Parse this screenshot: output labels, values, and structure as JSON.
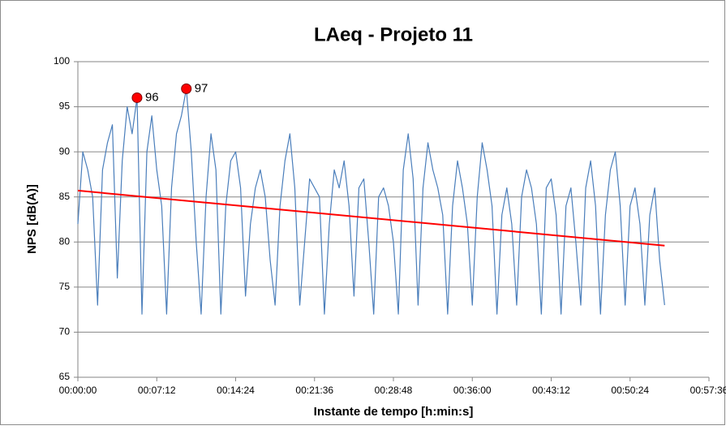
{
  "chart_data": {
    "type": "line",
    "title": "LAeq - Projeto 11",
    "x_label": "Instante de tempo [h:min:s]",
    "y_label": "NPS [dB(A)]",
    "xlim": [
      0,
      3456
    ],
    "xticks": [
      {
        "value": 0,
        "label": "00:00:00"
      },
      {
        "value": 432,
        "label": "00:07:12"
      },
      {
        "value": 864,
        "label": "00:14:24"
      },
      {
        "value": 1296,
        "label": "00:21:36"
      },
      {
        "value": 1728,
        "label": "00:28:48"
      },
      {
        "value": 2160,
        "label": "00:36:00"
      },
      {
        "value": 2592,
        "label": "00:43:12"
      },
      {
        "value": 3024,
        "label": "00:50:24"
      },
      {
        "value": 3456,
        "label": "00:57:36"
      }
    ],
    "ylim": [
      65,
      100
    ],
    "yticks": [
      65,
      70,
      75,
      80,
      85,
      90,
      95,
      100
    ],
    "grid": true,
    "x": [
      0,
      27,
      54,
      81,
      108,
      135,
      162,
      189,
      216,
      243,
      270,
      297,
      324,
      351,
      378,
      405,
      432,
      459,
      486,
      513,
      540,
      567,
      594,
      621,
      648,
      675,
      702,
      729,
      756,
      783,
      810,
      837,
      864,
      891,
      918,
      945,
      972,
      999,
      1026,
      1053,
      1080,
      1107,
      1134,
      1161,
      1188,
      1215,
      1242,
      1269,
      1296,
      1323,
      1350,
      1377,
      1404,
      1431,
      1458,
      1485,
      1512,
      1539,
      1566,
      1593,
      1620,
      1647,
      1674,
      1701,
      1728,
      1755,
      1782,
      1809,
      1836,
      1863,
      1890,
      1917,
      1944,
      1971,
      1998,
      2025,
      2052,
      2079,
      2106,
      2133,
      2160,
      2187,
      2214,
      2241,
      2268,
      2295,
      2322,
      2349,
      2376,
      2403,
      2430,
      2457,
      2484,
      2511,
      2538,
      2565,
      2592,
      2619,
      2646,
      2673,
      2700,
      2727,
      2754,
      2781,
      2808,
      2835,
      2862,
      2889,
      2916,
      2943,
      2970,
      2997,
      3024,
      3051,
      3078,
      3105,
      3132,
      3159,
      3186,
      3213
    ],
    "values": [
      82,
      90,
      88,
      85,
      73,
      88,
      91,
      93,
      76,
      89,
      95,
      92,
      96,
      72,
      90,
      94,
      88,
      84,
      72,
      86,
      92,
      94,
      97,
      90,
      80,
      72,
      85,
      92,
      88,
      72,
      84,
      89,
      90,
      86,
      74,
      82,
      86,
      88,
      85,
      78,
      73,
      84,
      89,
      92,
      86,
      73,
      80,
      87,
      86,
      85,
      72,
      82,
      88,
      86,
      89,
      84,
      74,
      86,
      87,
      80,
      72,
      85,
      86,
      84,
      80,
      72,
      88,
      92,
      87,
      73,
      86,
      91,
      88,
      86,
      83,
      72,
      84,
      89,
      86,
      82,
      73,
      85,
      91,
      88,
      84,
      72,
      83,
      86,
      82,
      73,
      85,
      88,
      86,
      82,
      72,
      86,
      87,
      83,
      72,
      84,
      86,
      80,
      73,
      86,
      89,
      84,
      72,
      83,
      88,
      90,
      84,
      73,
      84,
      86,
      82,
      73,
      83,
      86,
      78,
      73
    ],
    "color": "#4a7ebb",
    "trendline": {
      "x": [
        0,
        3213
      ],
      "values": [
        85.7,
        79.6
      ],
      "color": "#ff0000"
    },
    "annotations": [
      {
        "x": 324,
        "value": 96
      },
      {
        "x": 594,
        "value": 97
      }
    ],
    "annotation_color": "#ff0000"
  }
}
